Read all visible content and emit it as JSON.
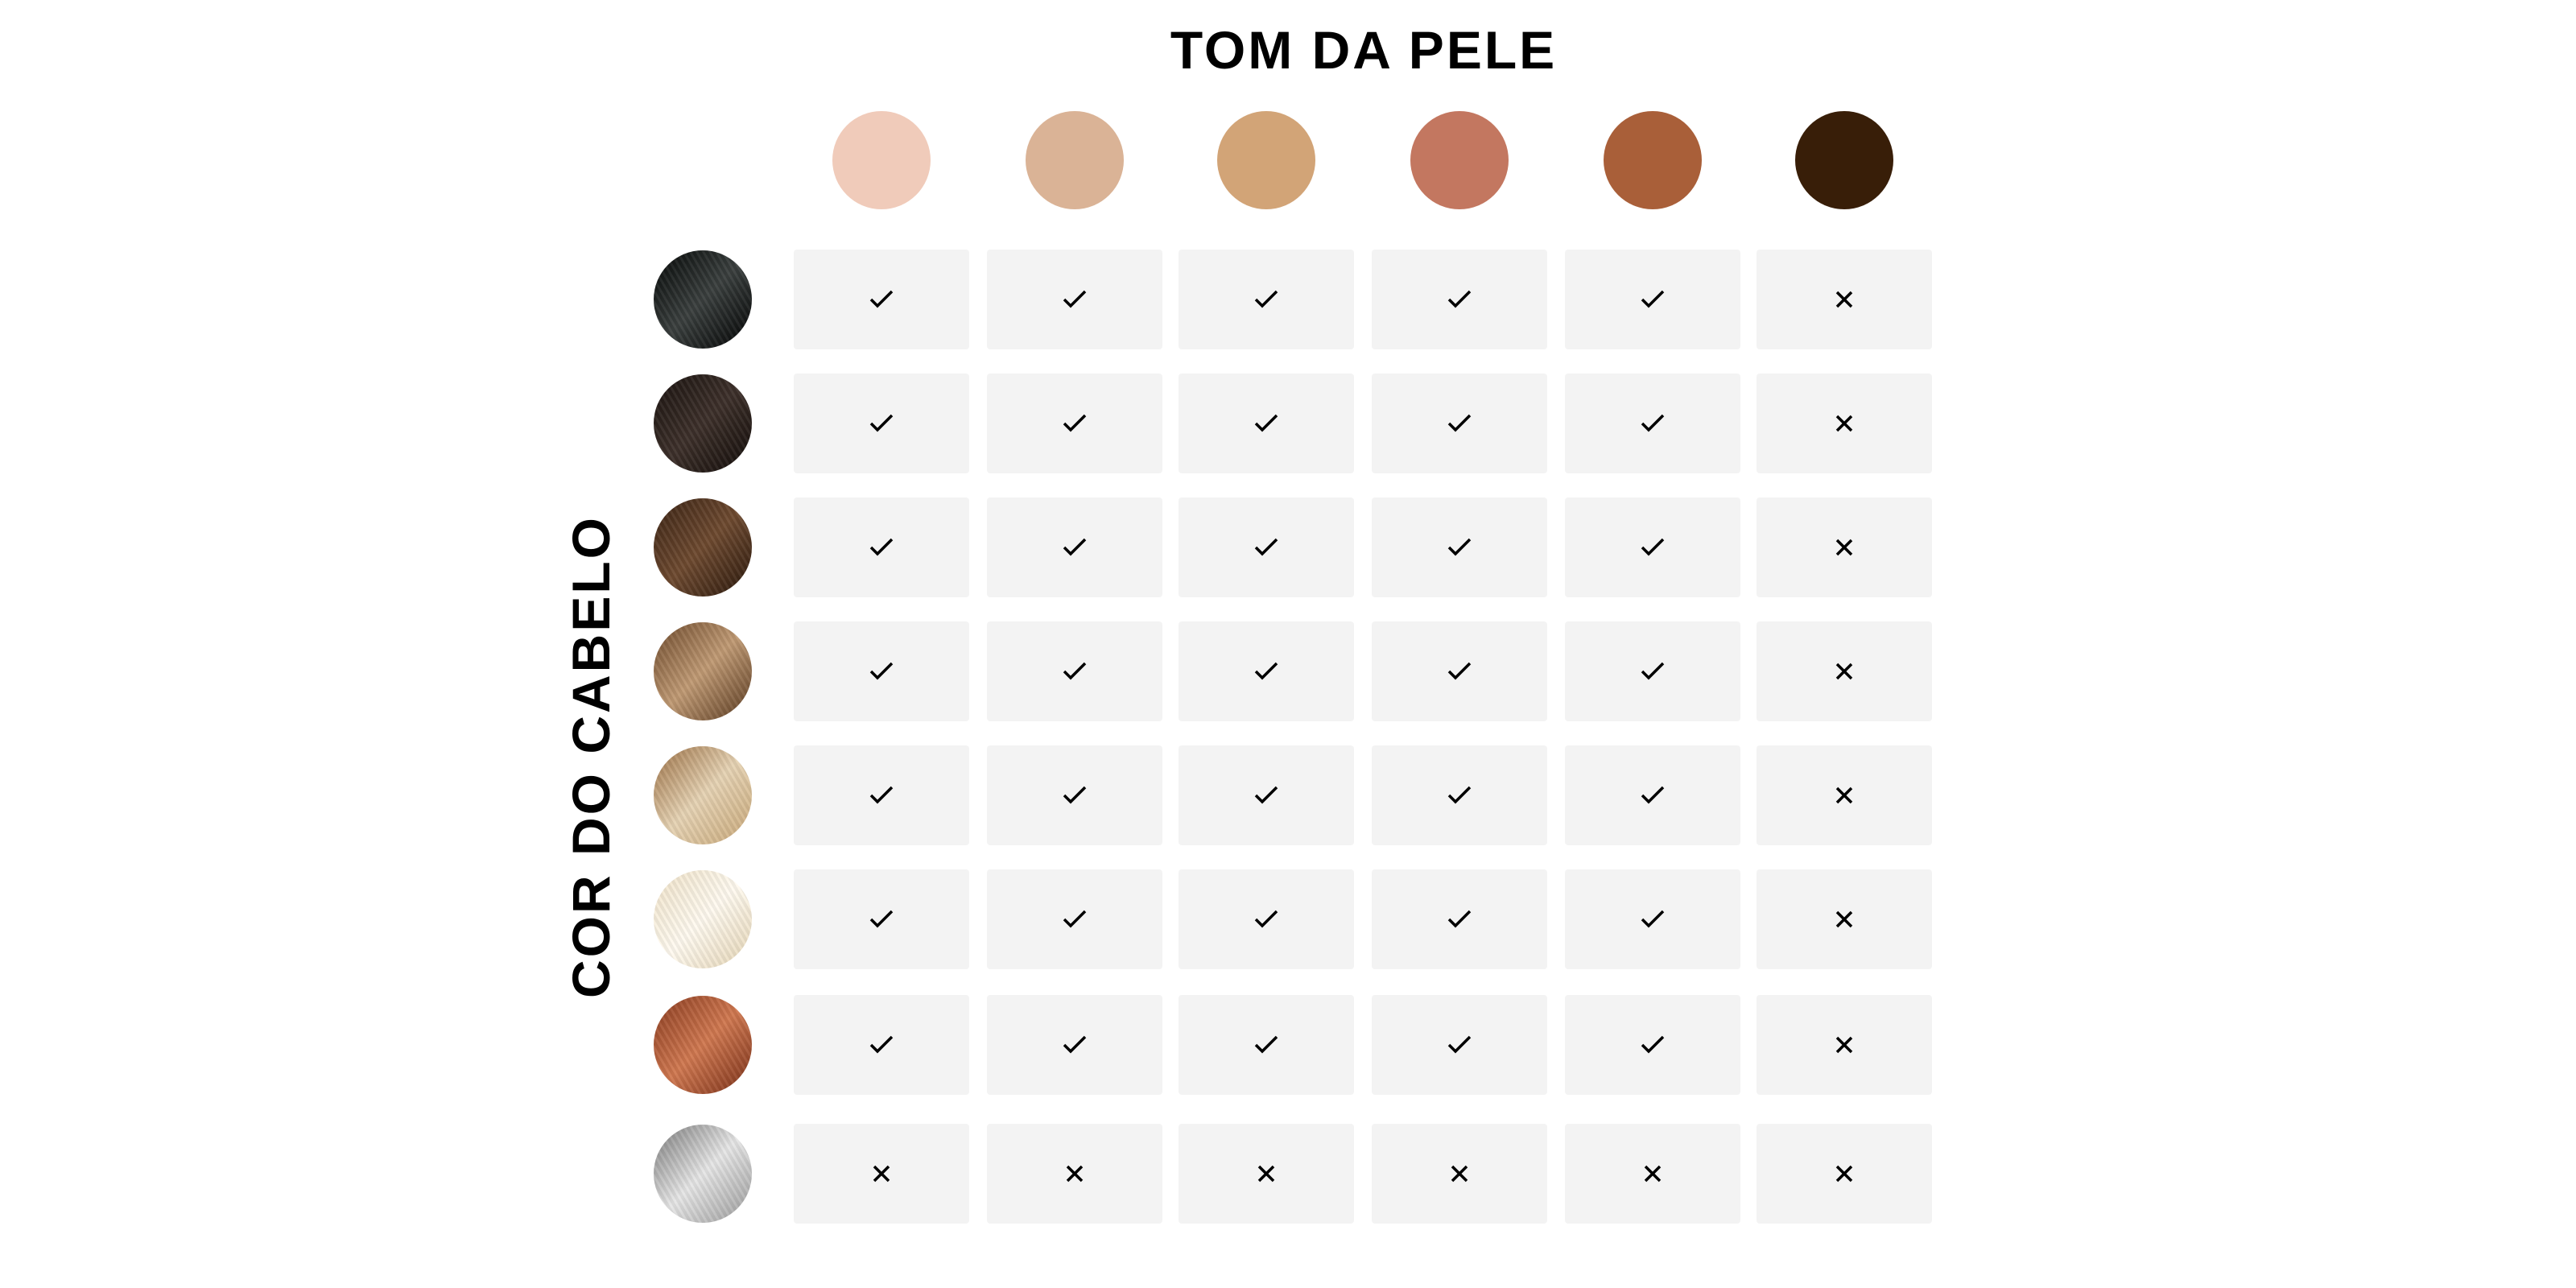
{
  "chart_data": {
    "type": "table",
    "title": "TOM DA PELE",
    "row_label": "COR DO CABELO",
    "skin_tones": [
      "#f0cbba",
      "#dab396",
      "#d2a477",
      "#c37760",
      "#a95f39",
      "#381e08"
    ],
    "hair_colors": [
      {
        "name": "black",
        "colors": [
          "#050807",
          "#3a3f3e",
          "#020303"
        ]
      },
      {
        "name": "dark-brown",
        "colors": [
          "#1a1310",
          "#3d302a",
          "#120c09"
        ]
      },
      {
        "name": "medium-brown",
        "colors": [
          "#3b2415",
          "#6e4a30",
          "#2a180c"
        ]
      },
      {
        "name": "light-brown",
        "colors": [
          "#6e4a2c",
          "#c09a74",
          "#5a3a20"
        ]
      },
      {
        "name": "dark-blonde",
        "colors": [
          "#9c7044",
          "#e6d3b4",
          "#c9a878"
        ]
      },
      {
        "name": "light-blonde",
        "colors": [
          "#efe2c8",
          "#fffaf0",
          "#e4d4b4"
        ]
      },
      {
        "name": "copper-red",
        "colors": [
          "#8a3c20",
          "#d07850",
          "#7a3018"
        ]
      },
      {
        "name": "grey",
        "colors": [
          "#7a7a7a",
          "#e6e6e6",
          "#9a9a9a"
        ]
      }
    ],
    "matrix": [
      [
        true,
        true,
        true,
        true,
        true,
        false
      ],
      [
        true,
        true,
        true,
        true,
        true,
        false
      ],
      [
        true,
        true,
        true,
        true,
        true,
        false
      ],
      [
        true,
        true,
        true,
        true,
        true,
        false
      ],
      [
        true,
        true,
        true,
        true,
        true,
        false
      ],
      [
        true,
        true,
        true,
        true,
        true,
        false
      ],
      [
        true,
        true,
        true,
        true,
        true,
        false
      ],
      [
        false,
        false,
        false,
        false,
        false,
        false
      ]
    ],
    "legend": {
      "true": "check-icon",
      "false": "cross-icon"
    }
  }
}
